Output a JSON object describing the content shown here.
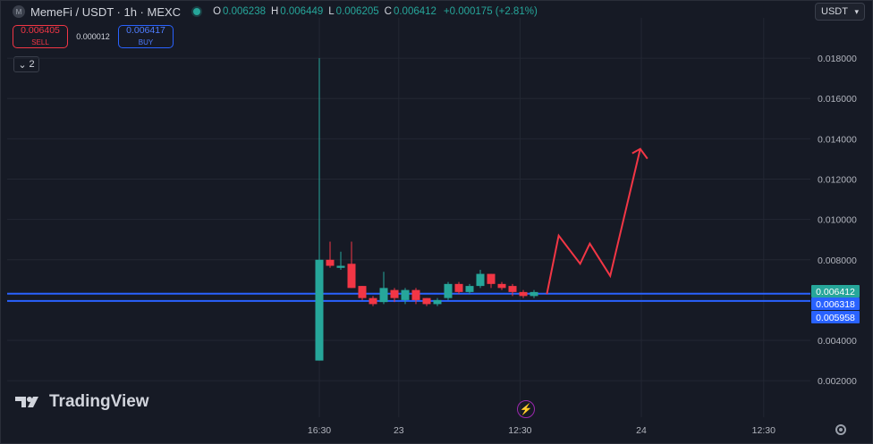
{
  "header": {
    "logo_letter": "M",
    "symbol": "MemeFi / USDT · 1h · MEXC",
    "ohlc": [
      {
        "key": "O",
        "value": "0.006238"
      },
      {
        "key": "H",
        "value": "0.006449"
      },
      {
        "key": "L",
        "value": "0.006205"
      },
      {
        "key": "C",
        "value": "0.006412"
      }
    ],
    "change": "+0.000175 (+2.81%)"
  },
  "trade": {
    "sell_price": "0.006405",
    "sell_label": "SELL",
    "spread": "0.000012",
    "buy_price": "0.006417",
    "buy_label": "BUY"
  },
  "indicators_toggle": {
    "icon": "chevron-down-icon",
    "count": "2"
  },
  "currency": "USDT",
  "brand": "TradingView",
  "colors": {
    "up": "#26a69a",
    "down": "#f23645",
    "line": "#2962ff",
    "arrow": "#f23645",
    "bg": "#161a25",
    "grid": "#232733"
  },
  "chart_data": {
    "type": "candlestick",
    "y_ticks": [
      "0.018000",
      "0.016000",
      "0.014000",
      "0.012000",
      "0.010000",
      "0.008000",
      "0.004000",
      "0.002000"
    ],
    "ylim": [
      0.0004,
      0.019
    ],
    "x_ticks": [
      "16:30",
      "23",
      "12:30",
      "24",
      "12:30"
    ],
    "price_labels": [
      {
        "value": "0.006412",
        "color": "#26a69a"
      },
      {
        "value": "0.006318",
        "color": "#2962ff"
      },
      {
        "value": "0.005958",
        "color": "#2962ff"
      }
    ],
    "horizontal_lines": [
      0.006318,
      0.005958
    ],
    "candles": [
      [
        0.003,
        0.018,
        0.003,
        0.008
      ],
      [
        0.008,
        0.0089,
        0.0076,
        0.0077
      ],
      [
        0.0076,
        0.0084,
        0.0075,
        0.0077
      ],
      [
        0.0078,
        0.0089,
        0.0066,
        0.0066
      ],
      [
        0.0067,
        0.0067,
        0.006,
        0.0061
      ],
      [
        0.0061,
        0.0062,
        0.0057,
        0.0058
      ],
      [
        0.0059,
        0.0074,
        0.0058,
        0.0066
      ],
      [
        0.0065,
        0.0066,
        0.0059,
        0.0061
      ],
      [
        0.006,
        0.0066,
        0.0058,
        0.0065
      ],
      [
        0.0065,
        0.0066,
        0.0058,
        0.006
      ],
      [
        0.0061,
        0.0061,
        0.0057,
        0.0058
      ],
      [
        0.0058,
        0.0061,
        0.0057,
        0.006
      ],
      [
        0.0061,
        0.0069,
        0.006,
        0.0068
      ],
      [
        0.0068,
        0.0069,
        0.0063,
        0.0064
      ],
      [
        0.0064,
        0.0068,
        0.0063,
        0.0067
      ],
      [
        0.0067,
        0.0075,
        0.0066,
        0.0073
      ],
      [
        0.0073,
        0.0073,
        0.0066,
        0.0068
      ],
      [
        0.0068,
        0.0069,
        0.0065,
        0.0066
      ],
      [
        0.0067,
        0.0068,
        0.0062,
        0.0064
      ],
      [
        0.0064,
        0.0065,
        0.0061,
        0.0062
      ],
      [
        0.0062,
        0.0065,
        0.0061,
        0.0064
      ]
    ],
    "forecast_path": [
      0.0063,
      0.0092,
      0.0078,
      0.0088,
      0.0072,
      0.0135
    ],
    "candle_x_ticks": {
      "16:30": 0,
      "23": 7.4,
      "12:30": 18.7,
      "24": 30.0,
      "12:30 (2)": 41.4
    }
  }
}
